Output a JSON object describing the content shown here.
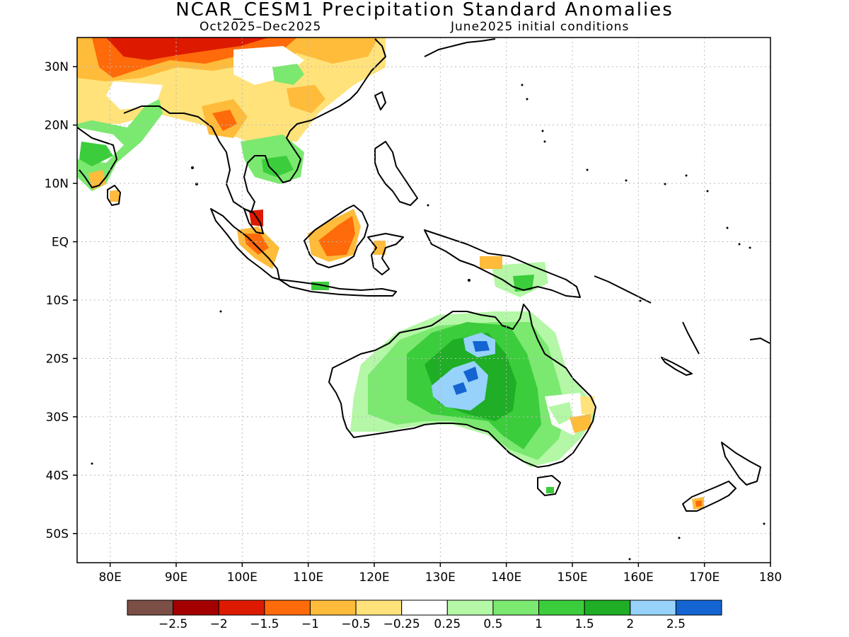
{
  "header": {
    "title": "NCAR_CESM1 Precipitation Standard Anomalies",
    "period": "Oct2025–Dec2025",
    "init": "June2025 initial conditions"
  },
  "map": {
    "lon_range": [
      75,
      180
    ],
    "lat_range": [
      -55,
      35
    ],
    "lat_ticks": [
      {
        "value": 30,
        "label": "30N"
      },
      {
        "value": 20,
        "label": "20N"
      },
      {
        "value": 10,
        "label": "10N"
      },
      {
        "value": 0,
        "label": "EQ"
      },
      {
        "value": -10,
        "label": "10S"
      },
      {
        "value": -20,
        "label": "20S"
      },
      {
        "value": -30,
        "label": "30S"
      },
      {
        "value": -40,
        "label": "40S"
      },
      {
        "value": -50,
        "label": "50S"
      }
    ],
    "lon_ticks": [
      {
        "value": 80,
        "label": "80E"
      },
      {
        "value": 90,
        "label": "90E"
      },
      {
        "value": 100,
        "label": "100E"
      },
      {
        "value": 110,
        "label": "110E"
      },
      {
        "value": 120,
        "label": "120E"
      },
      {
        "value": 130,
        "label": "130E"
      },
      {
        "value": 140,
        "label": "140E"
      },
      {
        "value": 150,
        "label": "150E"
      },
      {
        "value": 160,
        "label": "160E"
      },
      {
        "value": 170,
        "label": "170E"
      },
      {
        "value": 180,
        "label": "180"
      }
    ]
  },
  "legend": {
    "colors": [
      "#7b4f45",
      "#a50000",
      "#dd1a00",
      "#ff6a0a",
      "#ffbb3a",
      "#ffe27a",
      "#ffffff",
      "#b4f7a6",
      "#7be870",
      "#3ccd3c",
      "#1fae25",
      "#96d2fa",
      "#1464d2"
    ],
    "labels": [
      "−2.5",
      "−2",
      "−1.5",
      "−1",
      "−0.5",
      "−0.25",
      "0.25",
      "0.5",
      "1",
      "1.5",
      "2",
      "2.5"
    ]
  }
}
